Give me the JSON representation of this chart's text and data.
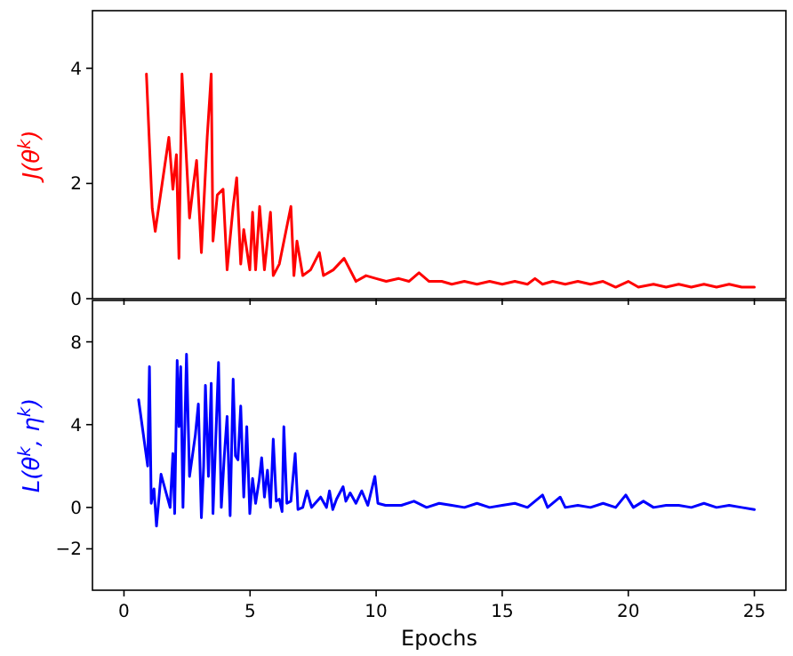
{
  "chart_data": [
    {
      "type": "line",
      "ylabel": "J(θ$^{k}$)",
      "xlim": [
        -1.25,
        26.25
      ],
      "xticks": [
        0,
        5,
        10,
        15,
        20,
        25
      ],
      "ylim": [
        0,
        5
      ],
      "yticks": [
        0,
        2,
        4
      ],
      "tick_labels": "y",
      "grid": false,
      "marker": "none",
      "line_style": "solid",
      "series": [
        {
          "color": "#ff0000",
          "x": [
            0.89,
            1.12,
            1.24,
            1.78,
            1.94,
            2.08,
            2.18,
            2.3,
            2.6,
            2.76,
            2.88,
            3.07,
            3.3,
            3.46,
            3.53,
            3.7,
            3.93,
            4.09,
            4.33,
            4.47,
            4.63,
            4.75,
            4.99,
            5.1,
            5.22,
            5.38,
            5.57,
            5.81,
            5.92,
            6.16,
            6.62,
            6.74,
            6.86,
            7.09,
            7.4,
            7.75,
            7.91,
            8.3,
            8.73,
            9.2,
            9.6,
            10.0,
            10.4,
            10.9,
            11.3,
            11.7,
            12.1,
            12.6,
            13.0,
            13.5,
            14.0,
            14.5,
            15.0,
            15.5,
            16.0,
            16.3,
            16.6,
            17.0,
            17.5,
            18.0,
            18.5,
            19.0,
            19.5,
            20.0,
            20.4,
            21.0,
            21.5,
            22.0,
            22.5,
            23.0,
            23.5,
            24.0,
            24.5,
            25.0
          ],
          "values": [
            3.9,
            1.57,
            1.17,
            2.8,
            1.9,
            2.5,
            0.7,
            3.9,
            1.4,
            2,
            2.4,
            0.8,
            2.8,
            3.9,
            1,
            1.8,
            1.9,
            0.5,
            1.6,
            2.1,
            0.6,
            1.2,
            0.5,
            1.5,
            0.5,
            1.6,
            0.5,
            1.5,
            0.4,
            0.6,
            1.6,
            0.4,
            1,
            0.4,
            0.5,
            0.8,
            0.4,
            0.5,
            0.7,
            0.3,
            0.4,
            0.35,
            0.3,
            0.35,
            0.3,
            0.45,
            0.3,
            0.3,
            0.25,
            0.3,
            0.25,
            0.3,
            0.25,
            0.3,
            0.25,
            0.35,
            0.25,
            0.3,
            0.25,
            0.3,
            0.25,
            0.3,
            0.2,
            0.3,
            0.2,
            0.25,
            0.2,
            0.25,
            0.2,
            0.25,
            0.2,
            0.25,
            0.2,
            0.2
          ]
        }
      ]
    },
    {
      "type": "line",
      "ylabel": "L(θ$^{k}$, η$^{k}$)",
      "xlabel": "Epochs",
      "xlim": [
        -1.25,
        26.25
      ],
      "xticks": [
        0,
        5,
        10,
        15,
        20,
        25
      ],
      "ylim": [
        -4,
        10
      ],
      "yticks": [
        -2,
        0,
        4,
        8
      ],
      "grid": false,
      "marker": "none",
      "line_style": "solid",
      "series": [
        {
          "color": "#0000ff",
          "x": [
            0.58,
            0.94,
            1.01,
            1.08,
            1.19,
            1.29,
            1.47,
            1.83,
            1.94,
            2.01,
            2.11,
            2.18,
            2.25,
            2.34,
            2.48,
            2.6,
            2.83,
            2.95,
            3.07,
            3.16,
            3.23,
            3.35,
            3.46,
            3.53,
            3.63,
            3.75,
            3.86,
            3.98,
            4.09,
            4.21,
            4.33,
            4.42,
            4.52,
            4.63,
            4.75,
            4.87,
            4.99,
            5.1,
            5.22,
            5.36,
            5.46,
            5.57,
            5.69,
            5.81,
            5.92,
            6.04,
            6.16,
            6.27,
            6.34,
            6.46,
            6.62,
            6.79,
            6.9,
            7.09,
            7.26,
            7.44,
            7.8,
            8.03,
            8.15,
            8.28,
            8.43,
            8.69,
            8.8,
            8.97,
            9.2,
            9.43,
            9.67,
            9.95,
            10.07,
            10.37,
            11.0,
            11.5,
            12.0,
            12.5,
            13.0,
            13.5,
            14.0,
            14.5,
            15.0,
            15.5,
            16.0,
            16.6,
            16.8,
            17.3,
            17.5,
            18.0,
            18.5,
            19.0,
            19.5,
            19.9,
            20.2,
            20.6,
            21.0,
            21.5,
            22.0,
            22.5,
            23.0,
            23.5,
            24.0,
            24.5,
            25.0
          ],
          "values": [
            5.2,
            2,
            6.8,
            0.2,
            0.9,
            -0.9,
            1.6,
            0,
            2.6,
            -0.3,
            7.1,
            3.9,
            6.8,
            0,
            7.4,
            1.5,
            3.5,
            5,
            -0.5,
            2,
            5.9,
            1.5,
            6,
            -0.3,
            3,
            7,
            0,
            2.5,
            4.4,
            -0.4,
            6.2,
            2.5,
            2.3,
            4.9,
            0.5,
            3.9,
            -0.3,
            1.4,
            0.2,
            1.3,
            2.4,
            0.5,
            1.8,
            0,
            3.3,
            0.3,
            0.4,
            -0.2,
            3.9,
            0.2,
            0.3,
            2.6,
            -0.1,
            0,
            0.8,
            0,
            0.5,
            0,
            0.8,
            -0.1,
            0.4,
            1,
            0.3,
            0.7,
            0.2,
            0.8,
            0.1,
            1.5,
            0.2,
            0.1,
            0.1,
            0.3,
            0,
            0.2,
            0.1,
            0,
            0.2,
            0,
            0.1,
            0.2,
            0,
            0.6,
            0,
            0.5,
            0,
            0.1,
            0,
            0.2,
            0,
            0.6,
            0,
            0.3,
            0,
            0.1,
            0.1,
            0,
            0.2,
            0,
            0.1,
            0,
            -0.1
          ]
        }
      ]
    }
  ]
}
